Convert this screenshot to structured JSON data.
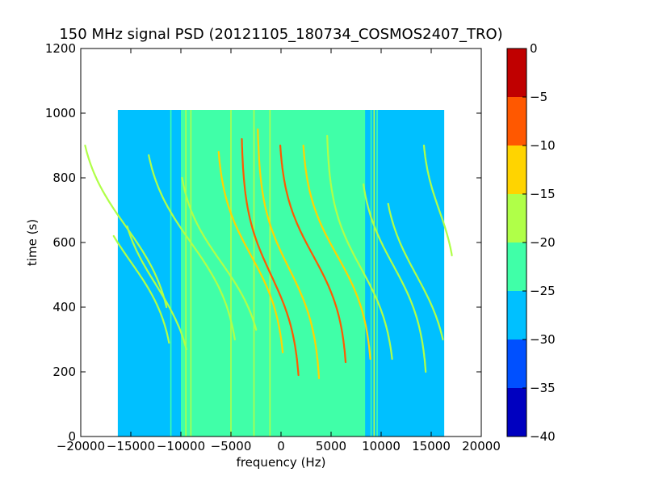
{
  "chart_data": {
    "type": "heatmap",
    "title": "150 MHz signal PSD (20121105_180734_COSMOS2407_TRO)",
    "xlabel": "frequency (Hz)",
    "ylabel": "time (s)",
    "xlim": [
      -20000,
      20000
    ],
    "ylim": [
      0,
      1200
    ],
    "x_ticks": [
      -20000,
      -15000,
      -10000,
      -5000,
      0,
      5000,
      10000,
      15000,
      20000
    ],
    "x_tick_labels": [
      "−20000",
      "−15000",
      "−10000",
      "−5000",
      "0",
      "5000",
      "10000",
      "15000",
      "20000"
    ],
    "y_ticks": [
      0,
      200,
      400,
      600,
      800,
      1000,
      1200
    ],
    "y_tick_labels": [
      "0",
      "200",
      "400",
      "600",
      "800",
      "1000",
      "1200"
    ],
    "data_extent": {
      "x": [
        -16300,
        16300
      ],
      "y": [
        0,
        1010
      ]
    },
    "background_value": -27,
    "bands": [
      {
        "x": [
          -10000,
          8400
        ],
        "value": -22
      }
    ],
    "vertical_lines": [
      {
        "x": -11000,
        "value": -22
      },
      {
        "x": -9500,
        "value": -17
      },
      {
        "x": -9000,
        "value": -19
      },
      {
        "x": -5000,
        "value": -17
      },
      {
        "x": -2700,
        "value": -19
      },
      {
        "x": -1100,
        "value": -17
      },
      {
        "x": 9000,
        "value": -22
      },
      {
        "x": 9300,
        "value": -19
      },
      {
        "x": 9600,
        "value": -22
      }
    ],
    "traces": [
      {
        "center_x": -15500,
        "t0": 650,
        "amp": 5000,
        "tau": 220,
        "t_range": [
          400,
          900
        ],
        "value": -17
      },
      {
        "center_x": -15000,
        "t0": 540,
        "amp": 4500,
        "tau": 200,
        "t_range": [
          290,
          620
        ],
        "value": -17
      },
      {
        "center_x": -12500,
        "t0": 470,
        "amp": 4000,
        "tau": 200,
        "t_range": [
          270,
          650
        ],
        "value": -17
      },
      {
        "center_x": -9000,
        "t0": 600,
        "amp": 5000,
        "tau": 220,
        "t_range": [
          300,
          870
        ],
        "value": -17
      },
      {
        "center_x": -6000,
        "t0": 540,
        "amp": 4500,
        "tau": 200,
        "t_range": [
          330,
          800
        ],
        "value": -17
      },
      {
        "center_x": -3000,
        "t0": 560,
        "amp": 3500,
        "tau": 200,
        "t_range": [
          260,
          880
        ],
        "value": -12
      },
      {
        "center_x": -1000,
        "t0": 500,
        "amp": 3000,
        "tau": 200,
        "t_range": [
          190,
          920
        ],
        "value": -7
      },
      {
        "center_x": 800,
        "t0": 520,
        "amp": 3200,
        "tau": 200,
        "t_range": [
          180,
          950
        ],
        "value": -12
      },
      {
        "center_x": 3200,
        "t0": 560,
        "amp": 3500,
        "tau": 200,
        "t_range": [
          230,
          900
        ],
        "value": -7
      },
      {
        "center_x": 5600,
        "t0": 560,
        "amp": 3600,
        "tau": 200,
        "t_range": [
          240,
          900
        ],
        "value": -12
      },
      {
        "center_x": 8000,
        "t0": 520,
        "amp": 3500,
        "tau": 200,
        "t_range": [
          240,
          930
        ],
        "value": -17
      },
      {
        "center_x": 11200,
        "t0": 530,
        "amp": 3500,
        "tau": 200,
        "t_range": [
          200,
          780
        ],
        "value": -17
      },
      {
        "center_x": 13500,
        "t0": 500,
        "amp": 3500,
        "tau": 200,
        "t_range": [
          300,
          720
        ],
        "value": -17
      },
      {
        "center_x": 15800,
        "t0": 700,
        "amp": 1800,
        "tau": 160,
        "t_range": [
          560,
          900
        ],
        "value": -17
      }
    ],
    "colorbar": {
      "min": -40,
      "max": 0,
      "levels": [
        -40,
        -35,
        -30,
        -25,
        -20,
        -15,
        -10,
        -5,
        0
      ],
      "tick_labels": [
        "−40",
        "−35",
        "−30",
        "−25",
        "−20",
        "−15",
        "−10",
        "−5",
        "0"
      ],
      "colors": [
        "#0000c0",
        "#0050ff",
        "#00c0ff",
        "#40ffa8",
        "#b0ff48",
        "#ffd400",
        "#ff5800",
        "#c00000"
      ]
    },
    "grid": false,
    "legend": "none"
  }
}
